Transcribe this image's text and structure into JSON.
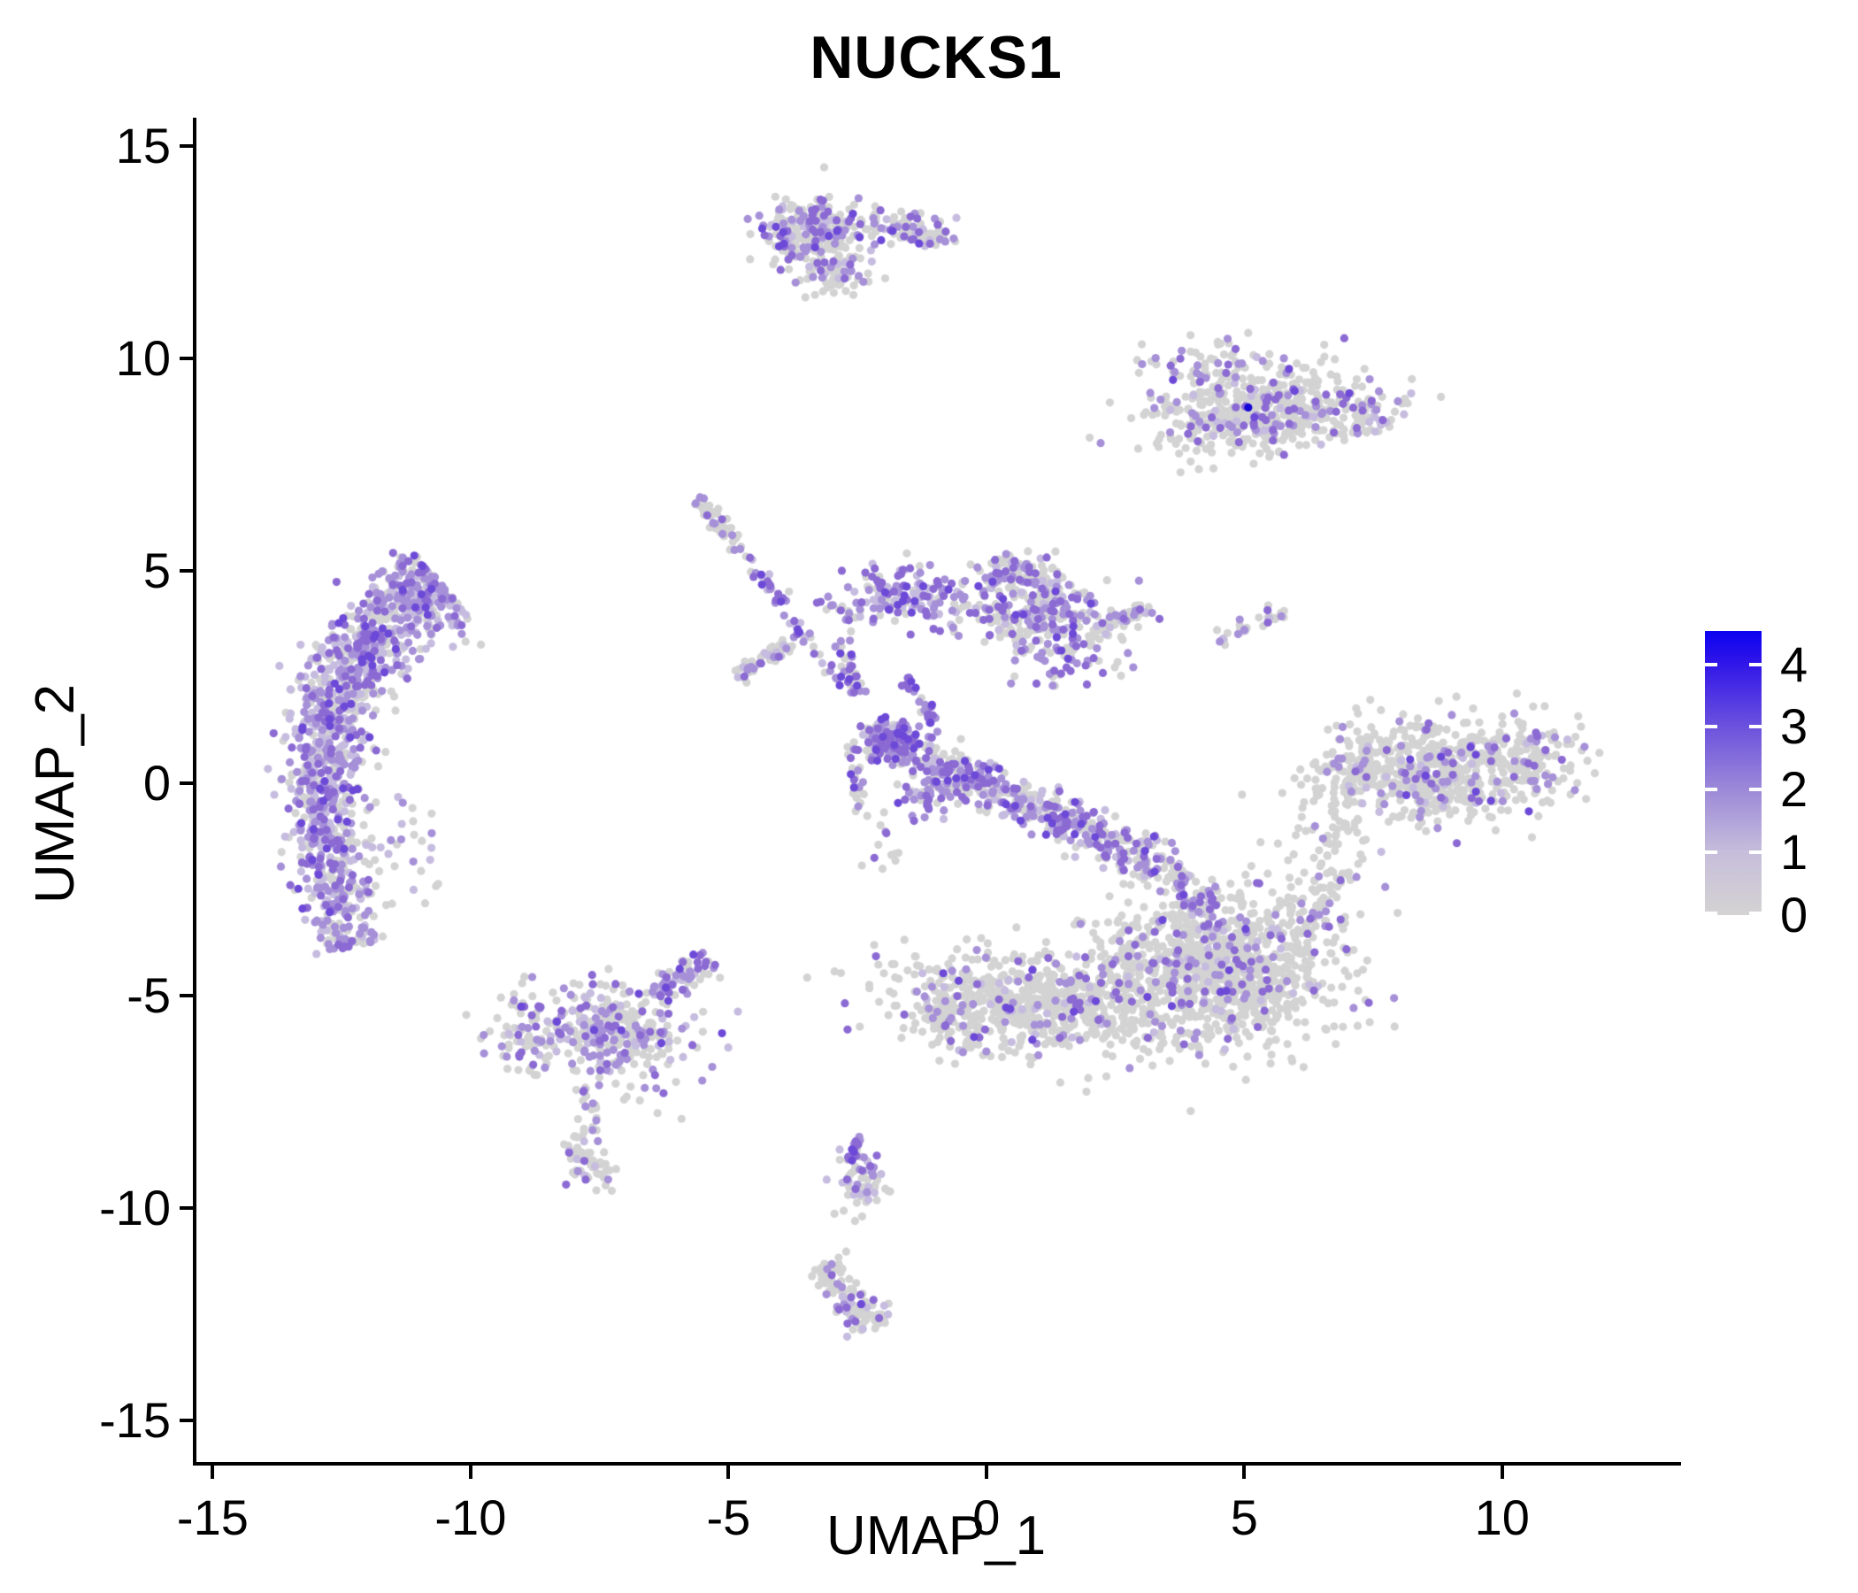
{
  "title": "NUCKS1",
  "chart_data": {
    "type": "scatter",
    "title": "NUCKS1",
    "xlabel": "UMAP_1",
    "ylabel": "UMAP_2",
    "xlim": [
      -15.35,
      13.4
    ],
    "ylim": [
      -15.98,
      15.63
    ],
    "x_ticks": [
      -15,
      -10,
      -5,
      0,
      5,
      10
    ],
    "y_ticks": [
      15,
      10,
      5,
      0,
      -5,
      -10,
      -15
    ],
    "grid": false,
    "background": "#ffffff",
    "axis_color": "#000000",
    "point_radius_px": 4.6,
    "palette": {
      "g": "#d3d3d3",
      "p1": "#c6bcdf",
      "p2": "#a690d8",
      "p3": "#8b6ad3",
      "p4": "#6d49d8",
      "p5": "#4520e0",
      "b": "#1405d6"
    },
    "legend": {
      "position": "right",
      "ticks": [
        4,
        3,
        2,
        1,
        0
      ],
      "vmax": 4.53,
      "gradient": [
        [
          "0%",
          "#0b02f1"
        ],
        [
          "11%",
          "#2f15e8"
        ],
        [
          "33%",
          "#6a50dd"
        ],
        [
          "55%",
          "#9b87d8"
        ],
        [
          "78%",
          "#c6bedb"
        ],
        [
          "100%",
          "#d5d3d3"
        ]
      ]
    },
    "clusters": [
      {
        "name": "top-main",
        "type": "gauss",
        "n": 250,
        "c": [
          -3.35,
          12.95
        ],
        "s": [
          0.55,
          0.4
        ],
        "rot": -5,
        "mix": {
          "g": 58,
          "p1": 12,
          "p2": 16,
          "p3": 10,
          "p4": 4
        }
      },
      {
        "name": "top-tail-right",
        "type": "gauss",
        "n": 85,
        "c": [
          -1.55,
          13.0
        ],
        "s": [
          0.45,
          0.2
        ],
        "rot": -8,
        "mix": {
          "g": 62,
          "p1": 10,
          "p2": 14,
          "p3": 10,
          "p4": 4
        }
      },
      {
        "name": "top-bump",
        "type": "gauss",
        "n": 55,
        "c": [
          -2.95,
          11.95
        ],
        "s": [
          0.32,
          0.28
        ],
        "rot": 0,
        "mix": {
          "g": 66,
          "p1": 12,
          "p2": 14,
          "p3": 8
        }
      },
      {
        "name": "topright-main",
        "type": "gauss",
        "n": 520,
        "c": [
          5.2,
          8.8
        ],
        "s": [
          1.05,
          0.52
        ],
        "rot": 12,
        "mix": {
          "g": 80,
          "p1": 6,
          "p2": 8,
          "p3": 5,
          "p4": 1
        }
      },
      {
        "name": "topright-tip",
        "type": "gauss",
        "n": 55,
        "c": [
          7.35,
          8.5
        ],
        "s": [
          0.42,
          0.22
        ],
        "rot": 18,
        "mix": {
          "g": 72,
          "p1": 12,
          "p2": 12,
          "p3": 4
        }
      },
      {
        "name": "topright-top-sparse",
        "type": "gauss",
        "n": 45,
        "c": [
          4.3,
          9.9
        ],
        "s": [
          0.75,
          0.3
        ],
        "rot": 0,
        "mix": {
          "g": 72,
          "p2": 18,
          "p3": 10
        }
      },
      {
        "name": "topright-blue-dot",
        "type": "gauss",
        "n": 1,
        "c": [
          5.05,
          8.85
        ],
        "s": [
          0.01,
          0.01
        ],
        "rot": 0,
        "mix": {
          "b": 1
        }
      },
      {
        "name": "left-crescent",
        "type": "curve",
        "n": 1250,
        "p0": [
          -10.65,
          4.75
        ],
        "p1": [
          -14.1,
          2.3
        ],
        "p2": [
          -12.35,
          -3.85
        ],
        "w0": 0.5,
        "w1": 0.3,
        "mix": {
          "g": 33,
          "p1": 24,
          "p2": 26,
          "p3": 13,
          "p4": 4
        }
      },
      {
        "name": "crescent-right-sparse",
        "type": "gauss",
        "n": 45,
        "c": [
          -11.6,
          -1.6
        ],
        "s": [
          0.5,
          0.9
        ],
        "rot": 0,
        "mix": {
          "g": 70,
          "p1": 20,
          "p2": 10
        }
      },
      {
        "name": "streak-a-top",
        "type": "line",
        "n": 50,
        "a": [
          -5.65,
          6.7
        ],
        "b": [
          -4.85,
          5.5
        ],
        "w": 0.09,
        "mix": {
          "g": 82,
          "p2": 12,
          "p3": 6
        }
      },
      {
        "name": "streak-a-bottom",
        "type": "line",
        "n": 52,
        "a": [
          -4.85,
          5.5
        ],
        "b": [
          -2.7,
          2.1
        ],
        "w": 0.1,
        "mix": {
          "g": 28,
          "p1": 14,
          "p2": 30,
          "p3": 22,
          "p4": 6
        }
      },
      {
        "name": "streak-b",
        "type": "line",
        "n": 60,
        "a": [
          -4.9,
          2.55
        ],
        "b": [
          -3.85,
          3.3
        ],
        "w": 0.09,
        "mix": {
          "g": 76,
          "p1": 10,
          "p2": 10,
          "p3": 4
        }
      },
      {
        "name": "trail-c",
        "type": "line",
        "n": 14,
        "a": [
          -3.3,
          4.35
        ],
        "b": [
          -2.6,
          3.85
        ],
        "w": 0.08,
        "mix": {
          "g": 45,
          "p2": 35,
          "p3": 20
        }
      },
      {
        "name": "cluster-d",
        "type": "gauss",
        "n": 135,
        "c": [
          -1.65,
          4.35
        ],
        "s": [
          0.5,
          0.32
        ],
        "rot": -5,
        "mix": {
          "g": 24,
          "p1": 20,
          "p2": 30,
          "p3": 20,
          "p4": 6
        }
      },
      {
        "name": "mountain-e",
        "type": "gauss",
        "n": 300,
        "c": [
          0.85,
          4.1
        ],
        "s": [
          0.8,
          0.5
        ],
        "rot": -12,
        "mix": {
          "g": 58,
          "p1": 12,
          "p2": 16,
          "p3": 11,
          "p4": 3
        }
      },
      {
        "name": "mountain-peak",
        "type": "gauss",
        "n": 55,
        "c": [
          0.55,
          5.05
        ],
        "s": [
          0.3,
          0.22
        ],
        "rot": 0,
        "mix": {
          "g": 62,
          "p1": 10,
          "p2": 16,
          "p3": 12
        }
      },
      {
        "name": "e-below-sparse",
        "type": "gauss",
        "n": 55,
        "c": [
          1.6,
          2.95
        ],
        "s": [
          0.5,
          0.35
        ],
        "rot": 0,
        "mix": {
          "g": 35,
          "p2": 30,
          "p3": 25,
          "p4": 10
        }
      },
      {
        "name": "streak-f",
        "type": "line",
        "n": 38,
        "a": [
          2.1,
          3.7
        ],
        "b": [
          3.15,
          4.15
        ],
        "w": 0.09,
        "mix": {
          "g": 58,
          "p1": 12,
          "p2": 20,
          "p3": 10
        }
      },
      {
        "name": "streak-n",
        "type": "line",
        "n": 30,
        "a": [
          4.35,
          3.35
        ],
        "b": [
          5.75,
          4.05
        ],
        "w": 0.08,
        "mix": {
          "g": 74,
          "p1": 10,
          "p2": 12,
          "p3": 4
        }
      },
      {
        "name": "chain-down",
        "type": "line",
        "n": 30,
        "a": [
          -2.85,
          3.4
        ],
        "b": [
          -2.45,
          1.95
        ],
        "w": 0.09,
        "mix": {
          "g": 40,
          "p2": 30,
          "p3": 22,
          "p4": 8
        }
      },
      {
        "name": "purple-string",
        "type": "line",
        "n": 26,
        "a": [
          -1.6,
          2.5
        ],
        "b": [
          -1.05,
          1.45
        ],
        "w": 0.07,
        "mix": {
          "g": 15,
          "p2": 30,
          "p3": 35,
          "p4": 20
        }
      },
      {
        "name": "band-left-knot",
        "type": "gauss",
        "n": 95,
        "c": [
          -1.8,
          0.95
        ],
        "s": [
          0.32,
          0.27
        ],
        "rot": 0,
        "mix": {
          "g": 25,
          "p1": 15,
          "p2": 28,
          "p3": 24,
          "p4": 8
        }
      },
      {
        "name": "central-band",
        "type": "line",
        "n": 470,
        "a": [
          -2.3,
          1.2
        ],
        "b": [
          3.1,
          -1.75
        ],
        "w": 0.26,
        "mix": {
          "g": 42,
          "p1": 14,
          "p2": 22,
          "p3": 17,
          "p4": 5
        }
      },
      {
        "name": "band-below-knot",
        "type": "gauss",
        "n": 60,
        "c": [
          -1.0,
          -0.15
        ],
        "s": [
          0.4,
          0.28
        ],
        "rot": 0,
        "mix": {
          "g": 30,
          "p1": 14,
          "p2": 26,
          "p3": 22,
          "p4": 8
        }
      },
      {
        "name": "band-vstring",
        "type": "line",
        "n": 26,
        "a": [
          -2.6,
          1.05
        ],
        "b": [
          -2.5,
          -0.9
        ],
        "w": 0.08,
        "mix": {
          "g": 45,
          "p2": 25,
          "p3": 20,
          "p4": 10
        }
      },
      {
        "name": "band-below-dots",
        "type": "gauss",
        "n": 12,
        "c": [
          -2.05,
          -1.6
        ],
        "s": [
          0.18,
          0.35
        ],
        "rot": 0,
        "mix": {
          "g": 50,
          "p2": 30,
          "p3": 20
        }
      },
      {
        "name": "band-tail",
        "type": "line",
        "n": 90,
        "a": [
          3.1,
          -1.75
        ],
        "b": [
          4.35,
          -2.95
        ],
        "w": 0.24,
        "mix": {
          "g": 52,
          "p1": 10,
          "p2": 20,
          "p3": 14,
          "p4": 4
        }
      },
      {
        "name": "bottom-right-lobe",
        "type": "gauss",
        "n": 920,
        "c": [
          4.6,
          -4.35
        ],
        "s": [
          1.12,
          0.92
        ],
        "rot": 0,
        "mix": {
          "g": 86,
          "p1": 3,
          "p2": 6,
          "p3": 4,
          "p4": 1
        }
      },
      {
        "name": "bottom-right-topright",
        "type": "gauss",
        "n": 60,
        "c": [
          6.35,
          -2.9
        ],
        "s": [
          0.5,
          0.5
        ],
        "rot": 0,
        "mix": {
          "g": 80,
          "p2": 12,
          "p3": 8
        }
      },
      {
        "name": "bottom-bridge",
        "type": "gauss",
        "n": 130,
        "c": [
          2.65,
          -4.55
        ],
        "s": [
          0.6,
          0.6
        ],
        "rot": 0,
        "mix": {
          "g": 84,
          "p2": 9,
          "p3": 7
        }
      },
      {
        "name": "bottom-left-lobe",
        "type": "gauss",
        "n": 640,
        "c": [
          0.8,
          -5.2
        ],
        "s": [
          1.3,
          0.55
        ],
        "rot": -8,
        "mix": {
          "g": 87,
          "p1": 3,
          "p2": 5,
          "p3": 4,
          "p4": 1
        }
      },
      {
        "name": "bottom-left-tip",
        "type": "gauss",
        "n": 55,
        "c": [
          -0.75,
          -5.6
        ],
        "s": [
          0.4,
          0.33
        ],
        "rot": 0,
        "mix": {
          "g": 84,
          "p2": 10,
          "p3": 6
        }
      },
      {
        "name": "midleft-main",
        "type": "gauss",
        "n": 360,
        "c": [
          -7.4,
          -5.85
        ],
        "s": [
          0.95,
          0.58
        ],
        "rot": -10,
        "mix": {
          "g": 55,
          "p1": 15,
          "p2": 18,
          "p3": 10,
          "p4": 2
        }
      },
      {
        "name": "midleft-arm",
        "type": "line",
        "n": 70,
        "a": [
          -6.5,
          -4.95
        ],
        "b": [
          -5.45,
          -4.05
        ],
        "w": 0.2,
        "mix": {
          "g": 45,
          "p1": 15,
          "p2": 22,
          "p3": 14,
          "p4": 4
        }
      },
      {
        "name": "midleft-left-sparse",
        "type": "gauss",
        "n": 28,
        "c": [
          -9.05,
          -6.3
        ],
        "s": [
          0.35,
          0.35
        ],
        "rot": 0,
        "mix": {
          "g": 60,
          "p1": 15,
          "p2": 15,
          "p3": 10
        }
      },
      {
        "name": "midleft-stem",
        "type": "line",
        "n": 22,
        "a": [
          -7.8,
          -7.15
        ],
        "b": [
          -7.65,
          -8.3
        ],
        "w": 0.11,
        "mix": {
          "g": 68,
          "p2": 20,
          "p3": 12
        }
      },
      {
        "name": "small-blob-j",
        "type": "gauss",
        "n": 55,
        "c": [
          -7.75,
          -8.9
        ],
        "s": [
          0.3,
          0.35
        ],
        "rot": 0,
        "mix": {
          "g": 74,
          "p1": 8,
          "p2": 12,
          "p3": 6
        }
      },
      {
        "name": "cluster-k-tail",
        "type": "line",
        "n": 16,
        "a": [
          -2.55,
          -8.3
        ],
        "b": [
          -2.7,
          -8.95
        ],
        "w": 0.06,
        "mix": {
          "g": 10,
          "p2": 35,
          "p3": 35,
          "p4": 20
        }
      },
      {
        "name": "cluster-k",
        "type": "gauss",
        "n": 55,
        "c": [
          -2.5,
          -9.35
        ],
        "s": [
          0.22,
          0.3
        ],
        "rot": 0,
        "mix": {
          "g": 52,
          "p1": 14,
          "p2": 20,
          "p3": 12,
          "p4": 2
        }
      },
      {
        "name": "cluster-l",
        "type": "line",
        "n": 105,
        "a": [
          -3.25,
          -11.35
        ],
        "b": [
          -2.2,
          -12.85
        ],
        "w": 0.22,
        "mix": {
          "g": 68,
          "p1": 10,
          "p2": 14,
          "p3": 7,
          "p4": 1
        }
      },
      {
        "name": "sparse-dot-1",
        "type": "gauss",
        "n": 2,
        "c": [
          -1.85,
          -9.5
        ],
        "s": [
          0.08,
          0.08
        ],
        "rot": 0,
        "mix": {
          "g": 1
        }
      },
      {
        "name": "sparse-dot-2",
        "type": "gauss",
        "n": 2,
        "c": [
          -2.5,
          -10.3
        ],
        "s": [
          0.08,
          0.08
        ],
        "rot": 0,
        "mix": {
          "g": 1
        }
      },
      {
        "name": "right-main",
        "type": "gauss",
        "n": 600,
        "c": [
          8.8,
          0.2
        ],
        "s": [
          1.12,
          0.6
        ],
        "rot": 8,
        "mix": {
          "g": 85,
          "p1": 4,
          "p2": 6,
          "p3": 4,
          "p4": 1
        }
      },
      {
        "name": "right-left-arm",
        "type": "gauss",
        "n": 75,
        "c": [
          7.15,
          0.6
        ],
        "s": [
          0.45,
          0.4
        ],
        "rot": 0,
        "mix": {
          "g": 84,
          "p2": 10,
          "p3": 6
        }
      },
      {
        "name": "right-left-sparse",
        "type": "gauss",
        "n": 40,
        "c": [
          6.6,
          -1.0
        ],
        "s": [
          0.35,
          0.8
        ],
        "rot": 0,
        "mix": {
          "g": 88,
          "p2": 8,
          "p3": 4
        }
      },
      {
        "name": "right-right-tip",
        "type": "gauss",
        "n": 55,
        "c": [
          10.7,
          0.65
        ],
        "s": [
          0.45,
          0.35
        ],
        "rot": 10,
        "mix": {
          "g": 80,
          "p1": 8,
          "p2": 8,
          "p3": 4
        }
      },
      {
        "name": "between-sparse",
        "type": "gauss",
        "n": 22,
        "c": [
          6.35,
          -1.9
        ],
        "s": [
          0.35,
          0.6
        ],
        "rot": 0,
        "mix": {
          "g": 90,
          "p2": 10
        }
      }
    ]
  }
}
